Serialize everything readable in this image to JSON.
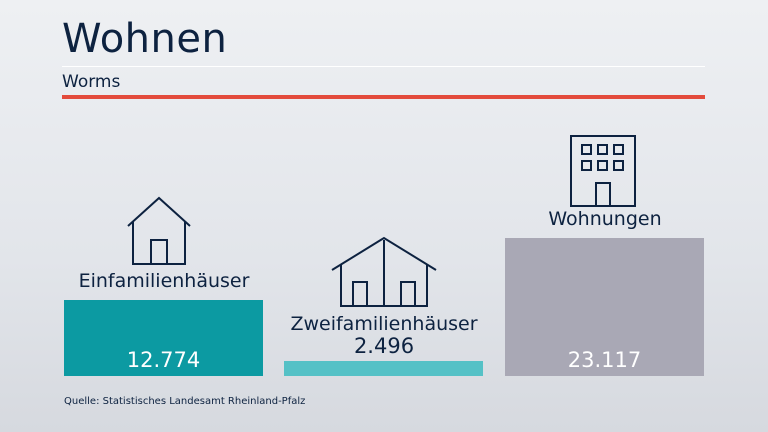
{
  "header": {
    "title": "Wohnen",
    "subtitle": "Worms"
  },
  "colors": {
    "accent": "#e34b3c",
    "einfamilien": "#0c9aa2",
    "zweifamilien": "#55c1c6",
    "wohnungen": "#a9a8b5"
  },
  "chart_data": {
    "type": "bar",
    "categories": [
      "Einfamilienhäuser",
      "Zweifamilienhäuser",
      "Wohnungen"
    ],
    "values": [
      12774,
      2496,
      23117
    ],
    "value_labels": [
      "12.774",
      "2.496",
      "23.117"
    ],
    "icons": [
      "house-icon",
      "double-house-icon",
      "apartment-building-icon"
    ]
  },
  "source": "Quelle: Statistisches Landesamt Rheinland-Pfalz"
}
